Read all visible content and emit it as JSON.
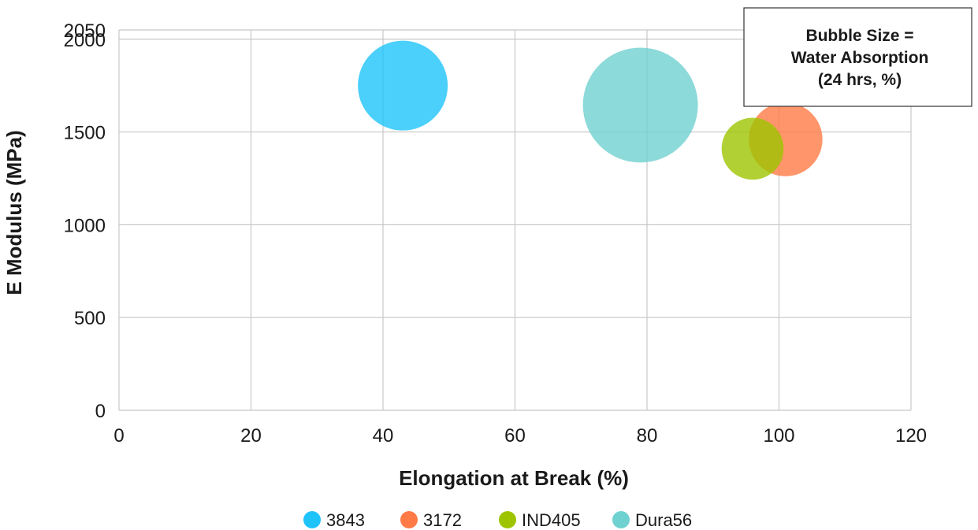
{
  "chart_data": {
    "type": "bubble",
    "xlabel": "Elongation at Break (%)",
    "ylabel": "E Modulus (MPa)",
    "xlim": [
      0,
      120
    ],
    "ylim": [
      0,
      2050
    ],
    "x_ticks": [
      "0",
      "20",
      "40",
      "60",
      "80",
      "100",
      "120"
    ],
    "y_ticks": [
      "0",
      "500",
      "1000",
      "1500",
      "2000",
      "2050"
    ],
    "grid": true,
    "annotation": [
      "Bubble Size =",
      "Water Absorption",
      "(24 hrs, %)"
    ],
    "legend_position": "bottom",
    "series": [
      {
        "name": "3843",
        "color": "#1ec3fa",
        "x": 43,
        "y": 1750,
        "size": 1.0
      },
      {
        "name": "3172",
        "color": "#ff7a45",
        "x": 101,
        "y": 1460,
        "size": 0.82
      },
      {
        "name": "IND405",
        "color": "#9ec400",
        "x": 96,
        "y": 1410,
        "size": 0.69
      },
      {
        "name": "Dura56",
        "color": "#6fd1d0",
        "x": 79,
        "y": 1645,
        "size": 1.28
      }
    ]
  }
}
